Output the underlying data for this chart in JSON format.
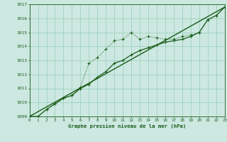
{
  "title": "Graphe pression niveau de la mer (hPa)",
  "background_color": "#cce8e0",
  "plot_bg_color": "#cce8e0",
  "line_color": "#1a5c1a",
  "grid_color": "#99ccbb",
  "xmin": 0,
  "xmax": 23,
  "ymin": 1009,
  "ymax": 1017,
  "yticks": [
    1009,
    1010,
    1011,
    1012,
    1013,
    1014,
    1015,
    1016,
    1017
  ],
  "xticks": [
    0,
    1,
    2,
    3,
    4,
    5,
    6,
    7,
    8,
    9,
    10,
    11,
    12,
    13,
    14,
    15,
    16,
    17,
    18,
    19,
    20,
    21,
    22,
    23
  ],
  "series_dotted_x": [
    0,
    1,
    2,
    3,
    4,
    5,
    6,
    7,
    8,
    9,
    10,
    11,
    12,
    13,
    14,
    15,
    16,
    17,
    18,
    19,
    20,
    21,
    22,
    23
  ],
  "series_dotted_y": [
    1009.0,
    1009.0,
    1009.5,
    1009.9,
    1010.3,
    1010.5,
    1011.1,
    1012.8,
    1013.2,
    1013.8,
    1014.4,
    1014.5,
    1015.0,
    1014.5,
    1014.7,
    1014.6,
    1014.5,
    1014.5,
    1014.7,
    1014.8,
    1015.0,
    1015.9,
    1016.2,
    1016.8
  ],
  "series_solid_x": [
    0,
    1,
    2,
    3,
    4,
    5,
    6,
    7,
    8,
    9,
    10,
    11,
    12,
    13,
    14,
    15,
    16,
    17,
    18,
    19,
    20,
    21,
    22,
    23
  ],
  "series_solid_y": [
    1009.0,
    1009.0,
    1009.5,
    1009.9,
    1010.3,
    1010.5,
    1011.0,
    1011.3,
    1011.8,
    1012.2,
    1012.8,
    1013.0,
    1013.4,
    1013.7,
    1013.9,
    1014.1,
    1014.3,
    1014.4,
    1014.5,
    1014.7,
    1015.0,
    1015.9,
    1016.2,
    1016.8
  ],
  "series_line_x": [
    0,
    23
  ],
  "series_line_y": [
    1009.0,
    1016.8
  ]
}
